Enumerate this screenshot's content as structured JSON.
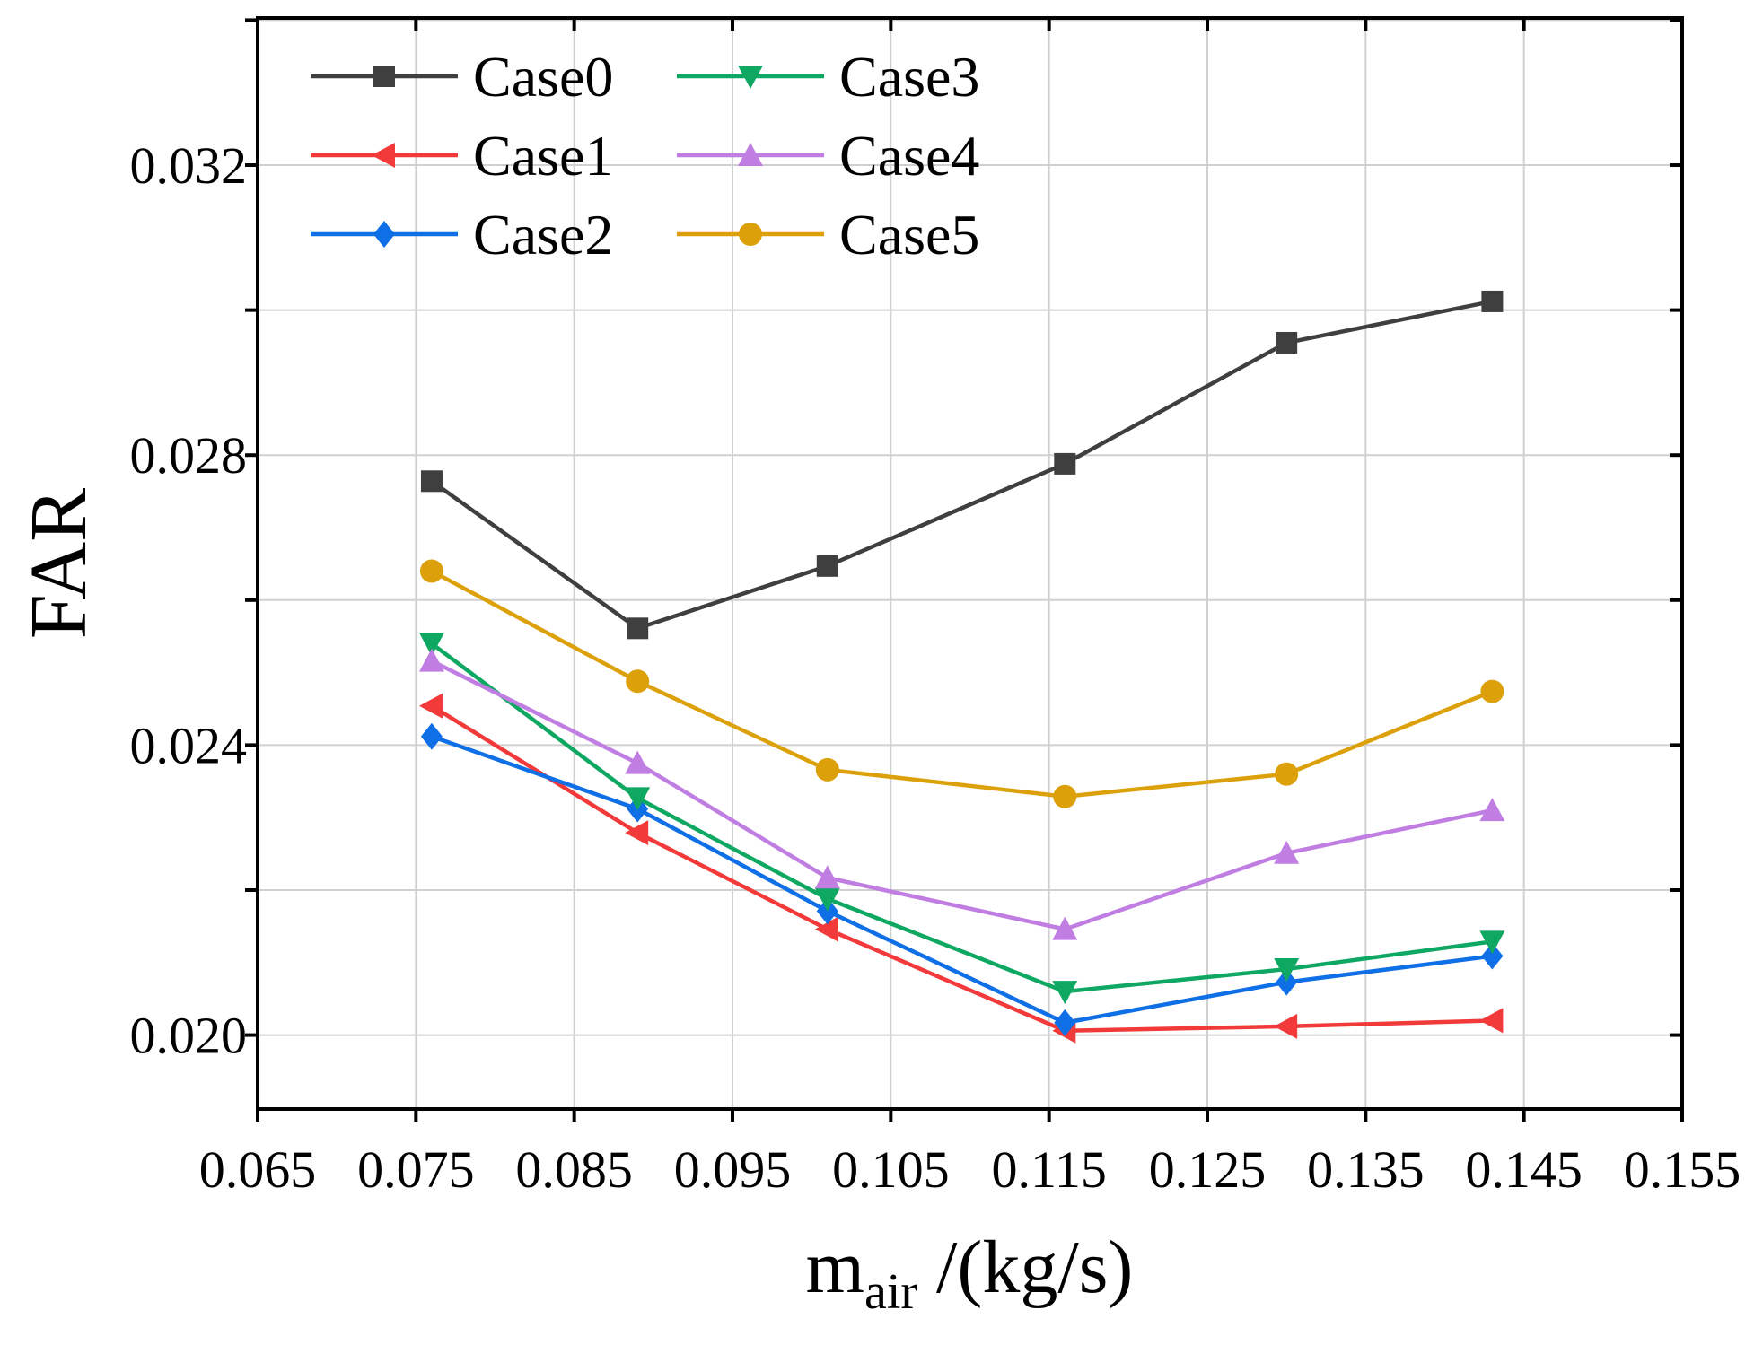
{
  "chart_data": {
    "type": "line",
    "title": "",
    "xlabel": "m",
    "xlabel_sub": "air",
    "xlabel_unit": " /(kg/s)",
    "ylabel": "FAR",
    "xlim": [
      0.065,
      0.155
    ],
    "ylim": [
      0.01898,
      0.03403
    ],
    "xticks": [
      "0.065",
      "0.075",
      "0.085",
      "0.095",
      "0.105",
      "0.115",
      "0.125",
      "0.135",
      "0.145",
      "0.155"
    ],
    "yticks": [
      "0.020",
      "0.024",
      "0.028",
      "0.032"
    ],
    "grid": true,
    "legend_position": "top-left",
    "x": [
      0.076,
      0.089,
      0.101,
      0.116,
      0.13,
      0.143
    ],
    "series": [
      {
        "name": "Case0",
        "color": "#3f3f3f",
        "marker": "square",
        "values": [
          0.02764,
          0.02561,
          0.02647,
          0.02788,
          0.02955,
          0.03012
        ]
      },
      {
        "name": "Case1",
        "color": "#f23a3a",
        "marker": "triangle-left",
        "values": [
          0.02454,
          0.02279,
          0.02146,
          0.02006,
          0.02012,
          0.0202
        ]
      },
      {
        "name": "Case2",
        "color": "#0f6fe6",
        "marker": "diamond",
        "values": [
          0.02412,
          0.02312,
          0.02171,
          0.02017,
          0.02073,
          0.02109
        ]
      },
      {
        "name": "Case3",
        "color": "#0fa862",
        "marker": "triangle-down",
        "values": [
          0.0254,
          0.02327,
          0.02188,
          0.0206,
          0.02091,
          0.02129
        ]
      },
      {
        "name": "Case4",
        "color": "#c07ee3",
        "marker": "triangle-up",
        "values": [
          0.02516,
          0.02375,
          0.02217,
          0.02146,
          0.02251,
          0.0231
        ]
      },
      {
        "name": "Case5",
        "color": "#dca10a",
        "marker": "circle",
        "values": [
          0.0264,
          0.02488,
          0.02366,
          0.02329,
          0.0236,
          0.02474
        ]
      }
    ]
  }
}
